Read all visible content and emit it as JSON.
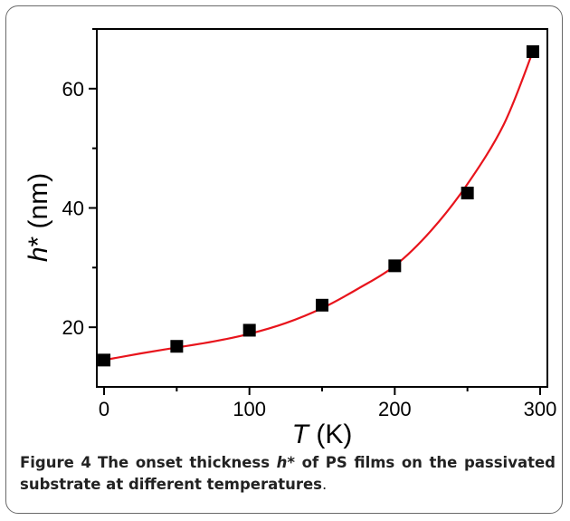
{
  "caption": {
    "label": "Figure 4",
    "text_before": "The onset thickness ",
    "symbol": "h",
    "text_after": "* of PS films on the passivated substrate at different temperatures",
    "end": "."
  },
  "chart_data": {
    "type": "scatter",
    "xlabel_symbol": "T",
    "xlabel_unit": " (K)",
    "ylabel_symbol": "h",
    "ylabel_unit": "* (nm)",
    "xlim": [
      -5,
      305
    ],
    "ylim": [
      10,
      70
    ],
    "x_ticks": [
      0,
      100,
      200,
      300
    ],
    "x_minor_ticks": [
      50,
      150,
      250
    ],
    "y_ticks": [
      20,
      40,
      60
    ],
    "y_minor_ticks": [
      30,
      50,
      70
    ],
    "series": [
      {
        "marker": "square",
        "color": "#000000",
        "x": [
          0,
          50,
          100,
          150,
          200,
          250,
          295
        ],
        "y": [
          14.5,
          16.8,
          19.5,
          23.7,
          30.3,
          42.5,
          66.2
        ]
      }
    ],
    "fit_line": {
      "color": "#e8141c",
      "x": [
        0,
        25,
        50,
        75,
        100,
        125,
        150,
        175,
        200,
        225,
        250,
        275,
        295
      ],
      "y": [
        14.5,
        15.6,
        16.6,
        17.6,
        18.9,
        20.7,
        23.2,
        26.5,
        30.3,
        36.2,
        44.0,
        54.0,
        66.2
      ]
    },
    "grid": false
  }
}
